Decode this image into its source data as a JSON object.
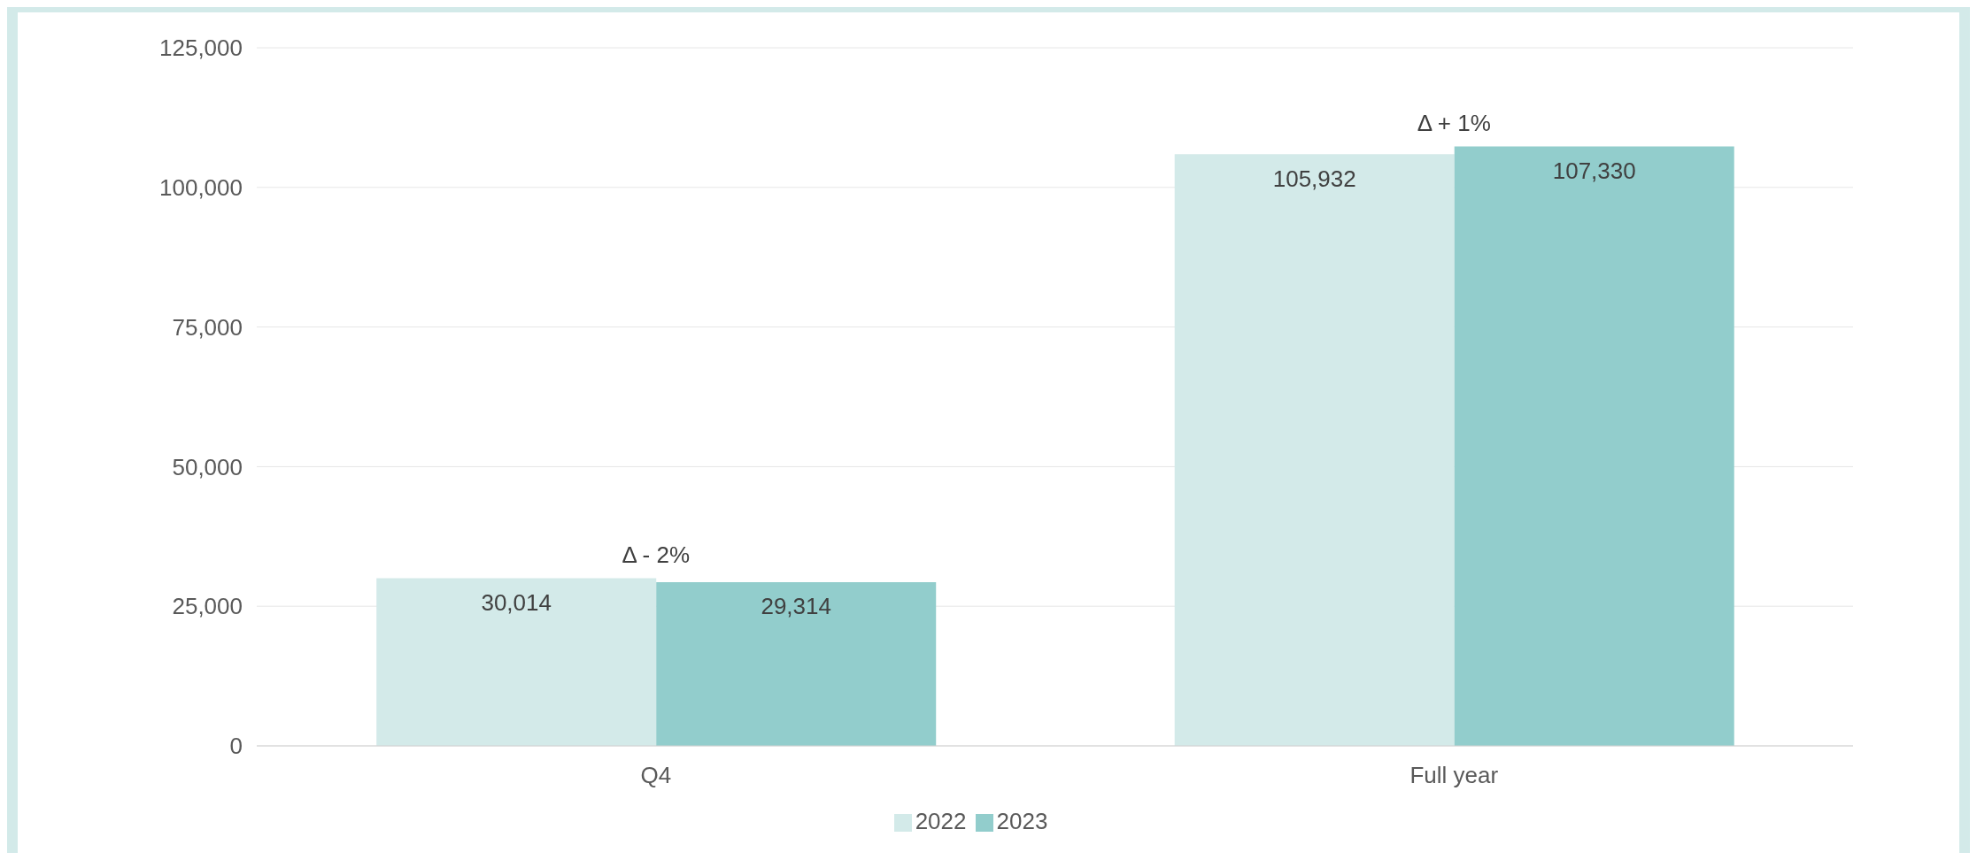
{
  "chart_data": {
    "type": "bar",
    "categories": [
      "Q4",
      "Full year"
    ],
    "series": [
      {
        "name": "2022",
        "color": "#d3eae9",
        "values": [
          30014,
          105932
        ],
        "value_labels": [
          "30,014",
          "105,932"
        ]
      },
      {
        "name": "2023",
        "color": "#92cdcc",
        "values": [
          29314,
          107330
        ],
        "value_labels": [
          "29,314",
          "107,330"
        ]
      }
    ],
    "ylim": [
      0,
      125000
    ],
    "yticks": [
      {
        "value": 0,
        "label": "0"
      },
      {
        "value": 25000,
        "label": "25,000"
      },
      {
        "value": 50000,
        "label": "50,000"
      },
      {
        "value": 75000,
        "label": "75,000"
      },
      {
        "value": 100000,
        "label": "100,000"
      },
      {
        "value": 125000,
        "label": "125,000"
      }
    ],
    "grid": "y",
    "legend": "bottom",
    "annotations": [
      "Δ  - 2%",
      "Δ  + 1%"
    ]
  }
}
